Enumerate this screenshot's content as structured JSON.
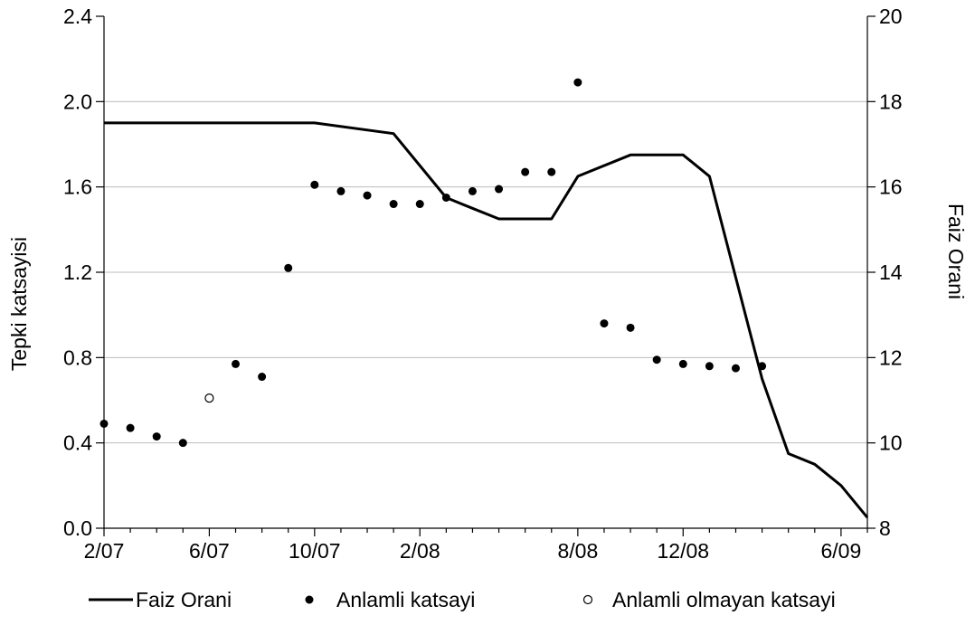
{
  "chart_data": {
    "type": "line+scatter",
    "x_ticks": [
      "2/07",
      "6/07",
      "10/07",
      "2/08",
      "8/08",
      "12/08",
      "6/09"
    ],
    "x_tick_months": [
      0,
      4,
      8,
      12,
      18,
      22,
      28
    ],
    "x_range_months": [
      0,
      29
    ],
    "y_left": {
      "label": "Tepki katsayisi",
      "range": [
        0,
        2.4
      ],
      "ticks": [
        "0.0",
        "0.4",
        "0.8",
        "1.2",
        "1.6",
        "2.0",
        "2.4"
      ],
      "tick_values": [
        0,
        0.4,
        0.8,
        1.2,
        1.6,
        2.0,
        2.4
      ]
    },
    "y_right": {
      "label": "Faiz Orani",
      "range": [
        8,
        20
      ],
      "ticks": [
        "8",
        "10",
        "12",
        "14",
        "16",
        "18",
        "20"
      ],
      "tick_values": [
        8,
        10,
        12,
        14,
        16,
        18,
        20
      ]
    },
    "grid": "horizontal",
    "series": [
      {
        "name": "Faiz Orani",
        "kind": "line",
        "axis": "right",
        "color": "#000000",
        "x": [
          0,
          6,
          7,
          8,
          11,
          13,
          14,
          15,
          17,
          18,
          20,
          21,
          22,
          23,
          25,
          26,
          27,
          28,
          29
        ],
        "y": [
          17.5,
          17.5,
          17.5,
          17.5,
          17.25,
          15.75,
          15.5,
          15.25,
          15.25,
          16.25,
          16.75,
          16.75,
          16.75,
          16.25,
          11.5,
          9.75,
          9.5,
          9.0,
          8.25
        ]
      },
      {
        "name": "Anlamli katsayi",
        "kind": "scatter",
        "axis": "left",
        "marker": "filled-circle",
        "color": "#000000",
        "x": [
          0,
          1,
          2,
          3,
          5,
          6,
          7,
          8,
          9,
          10,
          11,
          12,
          13,
          14,
          15,
          16,
          17,
          18,
          19,
          20,
          21,
          22,
          23,
          24,
          25
        ],
        "y": [
          0.49,
          0.47,
          0.43,
          0.4,
          0.77,
          0.71,
          1.22,
          1.61,
          1.58,
          1.56,
          1.52,
          1.52,
          1.55,
          1.58,
          1.59,
          1.67,
          1.67,
          2.09,
          0.96,
          0.94,
          0.79,
          0.77,
          0.76,
          0.75,
          0.76
        ]
      },
      {
        "name": "Anlamli olmayan katsayi",
        "kind": "scatter",
        "axis": "left",
        "marker": "open-circle",
        "color": "#000000",
        "x": [
          4
        ],
        "y": [
          0.61
        ]
      }
    ]
  }
}
